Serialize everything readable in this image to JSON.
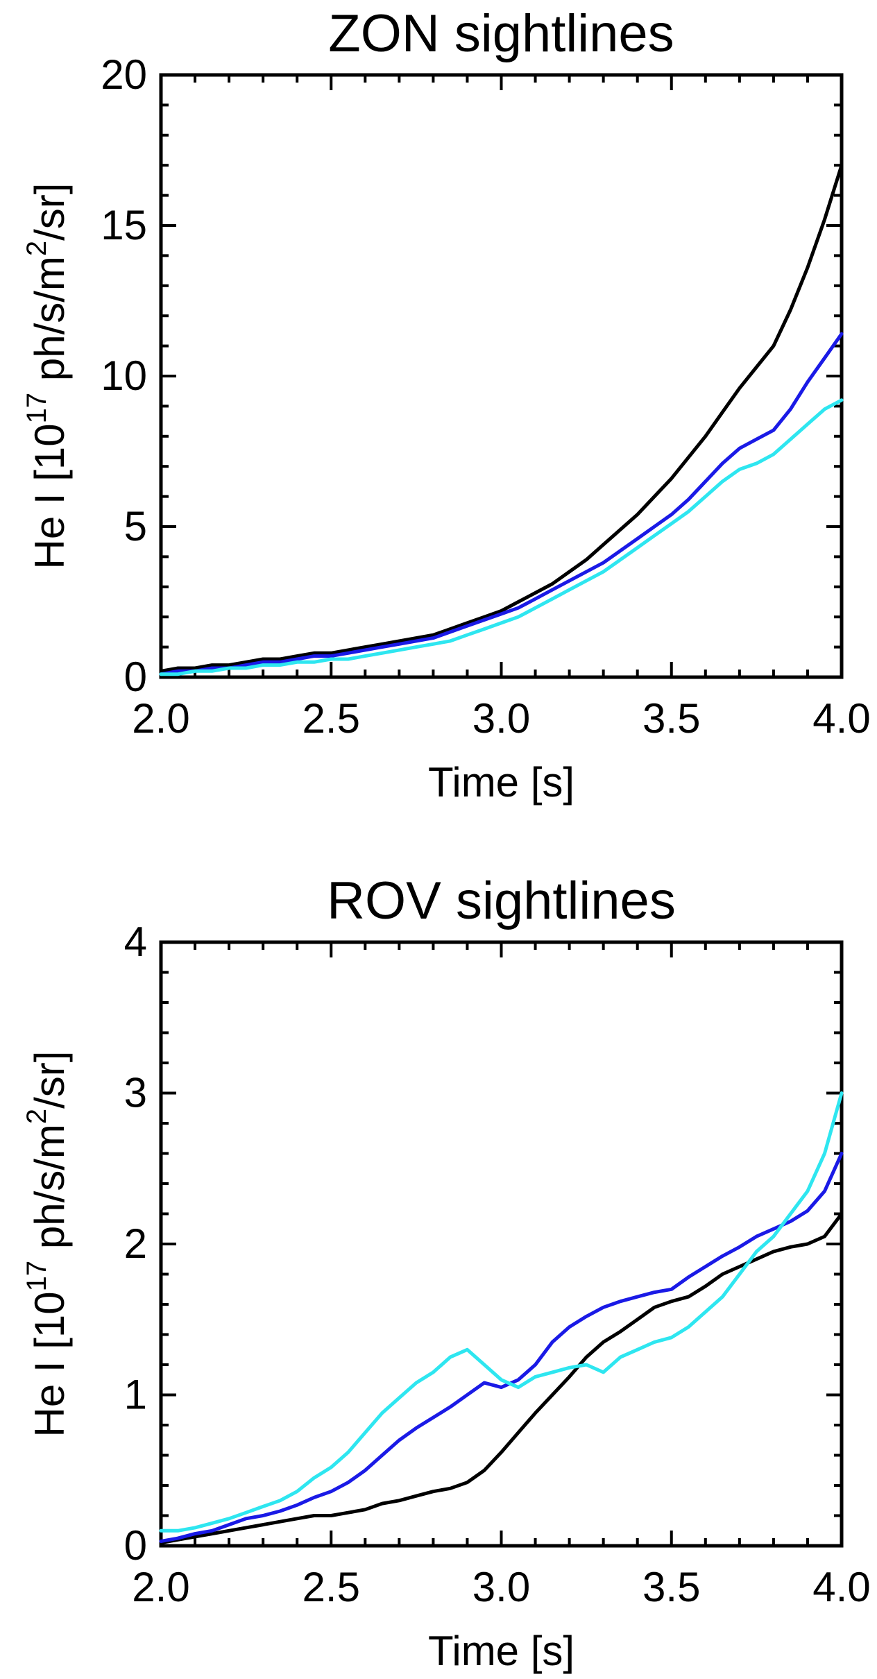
{
  "chart_data": [
    {
      "type": "line",
      "title": "ZON sightlines",
      "xlabel": "Time [s]",
      "ylabel_main": "He I [10",
      "ylabel_sup1": "17",
      "ylabel_mid": " ph/s/m",
      "ylabel_sup2": "2",
      "ylabel_end": "/sr]",
      "xlim": [
        2.0,
        4.0
      ],
      "ylim": [
        0,
        20
      ],
      "x_ticks": [
        "2.0",
        "2.5",
        "3.0",
        "3.5",
        "4.0"
      ],
      "y_ticks": [
        "0",
        "5",
        "10",
        "15",
        "20"
      ],
      "grid": false,
      "series": [
        {
          "color": "#000000",
          "x": [
            2.0,
            2.05,
            2.1,
            2.15,
            2.2,
            2.25,
            2.3,
            2.35,
            2.4,
            2.45,
            2.5,
            2.55,
            2.6,
            2.65,
            2.7,
            2.75,
            2.8,
            2.85,
            2.9,
            2.95,
            3.0,
            3.05,
            3.1,
            3.15,
            3.2,
            3.25,
            3.3,
            3.35,
            3.4,
            3.45,
            3.5,
            3.55,
            3.6,
            3.65,
            3.7,
            3.75,
            3.8,
            3.85,
            3.9,
            3.95,
            4.0
          ],
          "values": [
            0.2,
            0.3,
            0.3,
            0.4,
            0.4,
            0.5,
            0.6,
            0.6,
            0.7,
            0.8,
            0.8,
            0.9,
            1.0,
            1.1,
            1.2,
            1.3,
            1.4,
            1.6,
            1.8,
            2.0,
            2.2,
            2.5,
            2.8,
            3.1,
            3.5,
            3.9,
            4.4,
            4.9,
            5.4,
            6.0,
            6.6,
            7.3,
            8.0,
            8.8,
            9.6,
            10.3,
            11.0,
            12.2,
            13.6,
            15.2,
            17.0
          ]
        },
        {
          "color": "#1a1ae6",
          "x": [
            2.0,
            2.05,
            2.1,
            2.15,
            2.2,
            2.25,
            2.3,
            2.35,
            2.4,
            2.45,
            2.5,
            2.55,
            2.6,
            2.65,
            2.7,
            2.75,
            2.8,
            2.85,
            2.9,
            2.95,
            3.0,
            3.05,
            3.1,
            3.15,
            3.2,
            3.25,
            3.3,
            3.35,
            3.4,
            3.45,
            3.5,
            3.55,
            3.6,
            3.65,
            3.7,
            3.75,
            3.8,
            3.85,
            3.9,
            3.95,
            4.0
          ],
          "values": [
            0.1,
            0.2,
            0.2,
            0.3,
            0.3,
            0.4,
            0.5,
            0.5,
            0.6,
            0.7,
            0.7,
            0.8,
            0.9,
            1.0,
            1.1,
            1.2,
            1.3,
            1.5,
            1.7,
            1.9,
            2.1,
            2.3,
            2.6,
            2.9,
            3.2,
            3.5,
            3.8,
            4.2,
            4.6,
            5.0,
            5.4,
            5.9,
            6.5,
            7.1,
            7.6,
            7.9,
            8.2,
            8.9,
            9.8,
            10.6,
            11.4
          ]
        },
        {
          "color": "#2ee6f0",
          "x": [
            2.0,
            2.05,
            2.1,
            2.15,
            2.2,
            2.25,
            2.3,
            2.35,
            2.4,
            2.45,
            2.5,
            2.55,
            2.6,
            2.65,
            2.7,
            2.75,
            2.8,
            2.85,
            2.9,
            2.95,
            3.0,
            3.05,
            3.1,
            3.15,
            3.2,
            3.25,
            3.3,
            3.35,
            3.4,
            3.45,
            3.5,
            3.55,
            3.6,
            3.65,
            3.7,
            3.75,
            3.8,
            3.85,
            3.9,
            3.95,
            4.0
          ],
          "values": [
            0.1,
            0.1,
            0.2,
            0.2,
            0.3,
            0.3,
            0.4,
            0.4,
            0.5,
            0.5,
            0.6,
            0.6,
            0.7,
            0.8,
            0.9,
            1.0,
            1.1,
            1.2,
            1.4,
            1.6,
            1.8,
            2.0,
            2.3,
            2.6,
            2.9,
            3.2,
            3.5,
            3.9,
            4.3,
            4.7,
            5.1,
            5.5,
            6.0,
            6.5,
            6.9,
            7.1,
            7.4,
            7.9,
            8.4,
            8.9,
            9.2
          ]
        }
      ]
    },
    {
      "type": "line",
      "title": "ROV sightlines",
      "xlabel": "Time [s]",
      "ylabel_main": "He I [10",
      "ylabel_sup1": "17",
      "ylabel_mid": " ph/s/m",
      "ylabel_sup2": "2",
      "ylabel_end": "/sr]",
      "xlim": [
        2.0,
        4.0
      ],
      "ylim": [
        0,
        4
      ],
      "x_ticks": [
        "2.0",
        "2.5",
        "3.0",
        "3.5",
        "4.0"
      ],
      "y_ticks": [
        "0",
        "1",
        "2",
        "3",
        "4"
      ],
      "grid": false,
      "series": [
        {
          "color": "#000000",
          "x": [
            2.0,
            2.05,
            2.1,
            2.15,
            2.2,
            2.25,
            2.3,
            2.35,
            2.4,
            2.45,
            2.5,
            2.55,
            2.6,
            2.65,
            2.7,
            2.75,
            2.8,
            2.85,
            2.9,
            2.95,
            3.0,
            3.05,
            3.1,
            3.15,
            3.2,
            3.25,
            3.3,
            3.35,
            3.4,
            3.45,
            3.5,
            3.55,
            3.6,
            3.65,
            3.7,
            3.75,
            3.8,
            3.85,
            3.9,
            3.95,
            4.0
          ],
          "values": [
            0.02,
            0.04,
            0.06,
            0.08,
            0.1,
            0.12,
            0.14,
            0.16,
            0.18,
            0.2,
            0.2,
            0.22,
            0.24,
            0.28,
            0.3,
            0.33,
            0.36,
            0.38,
            0.42,
            0.5,
            0.62,
            0.75,
            0.88,
            1.0,
            1.12,
            1.25,
            1.35,
            1.42,
            1.5,
            1.58,
            1.62,
            1.65,
            1.72,
            1.8,
            1.85,
            1.9,
            1.95,
            1.98,
            2.0,
            2.05,
            2.2
          ]
        },
        {
          "color": "#1a1ae6",
          "x": [
            2.0,
            2.05,
            2.1,
            2.15,
            2.2,
            2.25,
            2.3,
            2.35,
            2.4,
            2.45,
            2.5,
            2.55,
            2.6,
            2.65,
            2.7,
            2.75,
            2.8,
            2.85,
            2.9,
            2.95,
            3.0,
            3.05,
            3.1,
            3.15,
            3.2,
            3.25,
            3.3,
            3.35,
            3.4,
            3.45,
            3.5,
            3.55,
            3.6,
            3.65,
            3.7,
            3.75,
            3.8,
            3.85,
            3.9,
            3.95,
            4.0
          ],
          "values": [
            0.03,
            0.05,
            0.08,
            0.1,
            0.14,
            0.18,
            0.2,
            0.23,
            0.27,
            0.32,
            0.36,
            0.42,
            0.5,
            0.6,
            0.7,
            0.78,
            0.85,
            0.92,
            1.0,
            1.08,
            1.05,
            1.1,
            1.2,
            1.35,
            1.45,
            1.52,
            1.58,
            1.62,
            1.65,
            1.68,
            1.7,
            1.78,
            1.85,
            1.92,
            1.98,
            2.05,
            2.1,
            2.15,
            2.22,
            2.35,
            2.6
          ]
        },
        {
          "color": "#2ee6f0",
          "x": [
            2.0,
            2.05,
            2.1,
            2.15,
            2.2,
            2.25,
            2.3,
            2.35,
            2.4,
            2.45,
            2.5,
            2.55,
            2.6,
            2.65,
            2.7,
            2.75,
            2.8,
            2.85,
            2.9,
            2.95,
            3.0,
            3.05,
            3.1,
            3.15,
            3.2,
            3.25,
            3.3,
            3.35,
            3.4,
            3.45,
            3.5,
            3.55,
            3.6,
            3.65,
            3.7,
            3.75,
            3.8,
            3.85,
            3.9,
            3.95,
            4.0
          ],
          "values": [
            0.1,
            0.1,
            0.12,
            0.15,
            0.18,
            0.22,
            0.26,
            0.3,
            0.36,
            0.45,
            0.52,
            0.62,
            0.75,
            0.88,
            0.98,
            1.08,
            1.15,
            1.25,
            1.3,
            1.2,
            1.1,
            1.05,
            1.12,
            1.15,
            1.18,
            1.2,
            1.15,
            1.25,
            1.3,
            1.35,
            1.38,
            1.45,
            1.55,
            1.65,
            1.8,
            1.95,
            2.05,
            2.2,
            2.35,
            2.6,
            3.0
          ]
        }
      ]
    }
  ]
}
